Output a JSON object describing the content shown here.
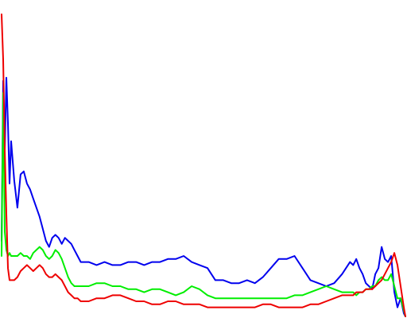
{
  "chart_data": {
    "type": "line",
    "title": "",
    "xlabel": "",
    "ylabel": "",
    "xlim": [
      0,
      255
    ],
    "ylim": [
      0,
      1
    ],
    "grid": false,
    "legend": "none",
    "x": [
      0,
      1,
      2,
      3,
      4,
      5,
      6,
      8,
      10,
      12,
      14,
      16,
      18,
      20,
      22,
      24,
      26,
      28,
      30,
      32,
      34,
      36,
      38,
      40,
      42,
      44,
      46,
      48,
      50,
      55,
      60,
      65,
      70,
      75,
      80,
      85,
      90,
      95,
      100,
      105,
      110,
      115,
      120,
      125,
      130,
      135,
      140,
      145,
      150,
      155,
      160,
      165,
      170,
      175,
      180,
      185,
      190,
      195,
      200,
      205,
      210,
      215,
      220,
      222,
      224,
      226,
      228,
      230,
      232,
      234,
      236,
      238,
      240,
      242,
      244,
      246,
      248,
      250,
      252,
      254,
      255
    ],
    "series": [
      {
        "color": "#0000ee",
        "values": [
          0.25,
          0.78,
          0.55,
          0.79,
          0.64,
          0.44,
          0.58,
          0.45,
          0.36,
          0.47,
          0.48,
          0.44,
          0.42,
          0.39,
          0.36,
          0.33,
          0.29,
          0.25,
          0.23,
          0.26,
          0.27,
          0.26,
          0.24,
          0.26,
          0.25,
          0.24,
          0.22,
          0.2,
          0.18,
          0.18,
          0.17,
          0.18,
          0.17,
          0.17,
          0.18,
          0.18,
          0.17,
          0.18,
          0.18,
          0.19,
          0.19,
          0.2,
          0.18,
          0.17,
          0.16,
          0.12,
          0.12,
          0.11,
          0.11,
          0.12,
          0.11,
          0.13,
          0.16,
          0.19,
          0.19,
          0.2,
          0.16,
          0.12,
          0.11,
          0.1,
          0.11,
          0.14,
          0.18,
          0.17,
          0.19,
          0.16,
          0.14,
          0.11,
          0.1,
          0.09,
          0.14,
          0.16,
          0.23,
          0.19,
          0.18,
          0.2,
          0.08,
          0.03,
          0.06,
          0.01,
          0.0
        ]
      },
      {
        "color": "#00ee00",
        "values": [
          0.2,
          0.74,
          0.28,
          0.22,
          0.2,
          0.21,
          0.2,
          0.2,
          0.2,
          0.21,
          0.2,
          0.2,
          0.19,
          0.21,
          0.22,
          0.23,
          0.22,
          0.2,
          0.19,
          0.2,
          0.22,
          0.21,
          0.19,
          0.16,
          0.13,
          0.11,
          0.1,
          0.1,
          0.1,
          0.1,
          0.11,
          0.11,
          0.1,
          0.1,
          0.09,
          0.09,
          0.08,
          0.09,
          0.09,
          0.08,
          0.07,
          0.08,
          0.1,
          0.09,
          0.07,
          0.06,
          0.06,
          0.06,
          0.06,
          0.06,
          0.06,
          0.06,
          0.06,
          0.06,
          0.06,
          0.07,
          0.07,
          0.08,
          0.09,
          0.1,
          0.09,
          0.08,
          0.08,
          0.08,
          0.07,
          0.08,
          0.08,
          0.09,
          0.09,
          0.1,
          0.1,
          0.12,
          0.13,
          0.12,
          0.12,
          0.14,
          0.1,
          0.06,
          0.06,
          0.02,
          0.0
        ]
      },
      {
        "color": "#ee0000",
        "values": [
          1.0,
          0.85,
          0.55,
          0.34,
          0.16,
          0.12,
          0.12,
          0.12,
          0.13,
          0.15,
          0.16,
          0.17,
          0.16,
          0.15,
          0.16,
          0.17,
          0.16,
          0.14,
          0.13,
          0.13,
          0.14,
          0.13,
          0.12,
          0.1,
          0.08,
          0.07,
          0.06,
          0.06,
          0.05,
          0.05,
          0.06,
          0.06,
          0.07,
          0.07,
          0.06,
          0.05,
          0.05,
          0.04,
          0.04,
          0.05,
          0.05,
          0.04,
          0.04,
          0.04,
          0.03,
          0.03,
          0.03,
          0.03,
          0.03,
          0.03,
          0.03,
          0.04,
          0.04,
          0.03,
          0.03,
          0.03,
          0.03,
          0.04,
          0.04,
          0.05,
          0.06,
          0.07,
          0.07,
          0.07,
          0.08,
          0.08,
          0.08,
          0.09,
          0.09,
          0.09,
          0.1,
          0.11,
          0.12,
          0.14,
          0.16,
          0.18,
          0.21,
          0.17,
          0.1,
          0.03,
          0.0
        ]
      }
    ]
  }
}
